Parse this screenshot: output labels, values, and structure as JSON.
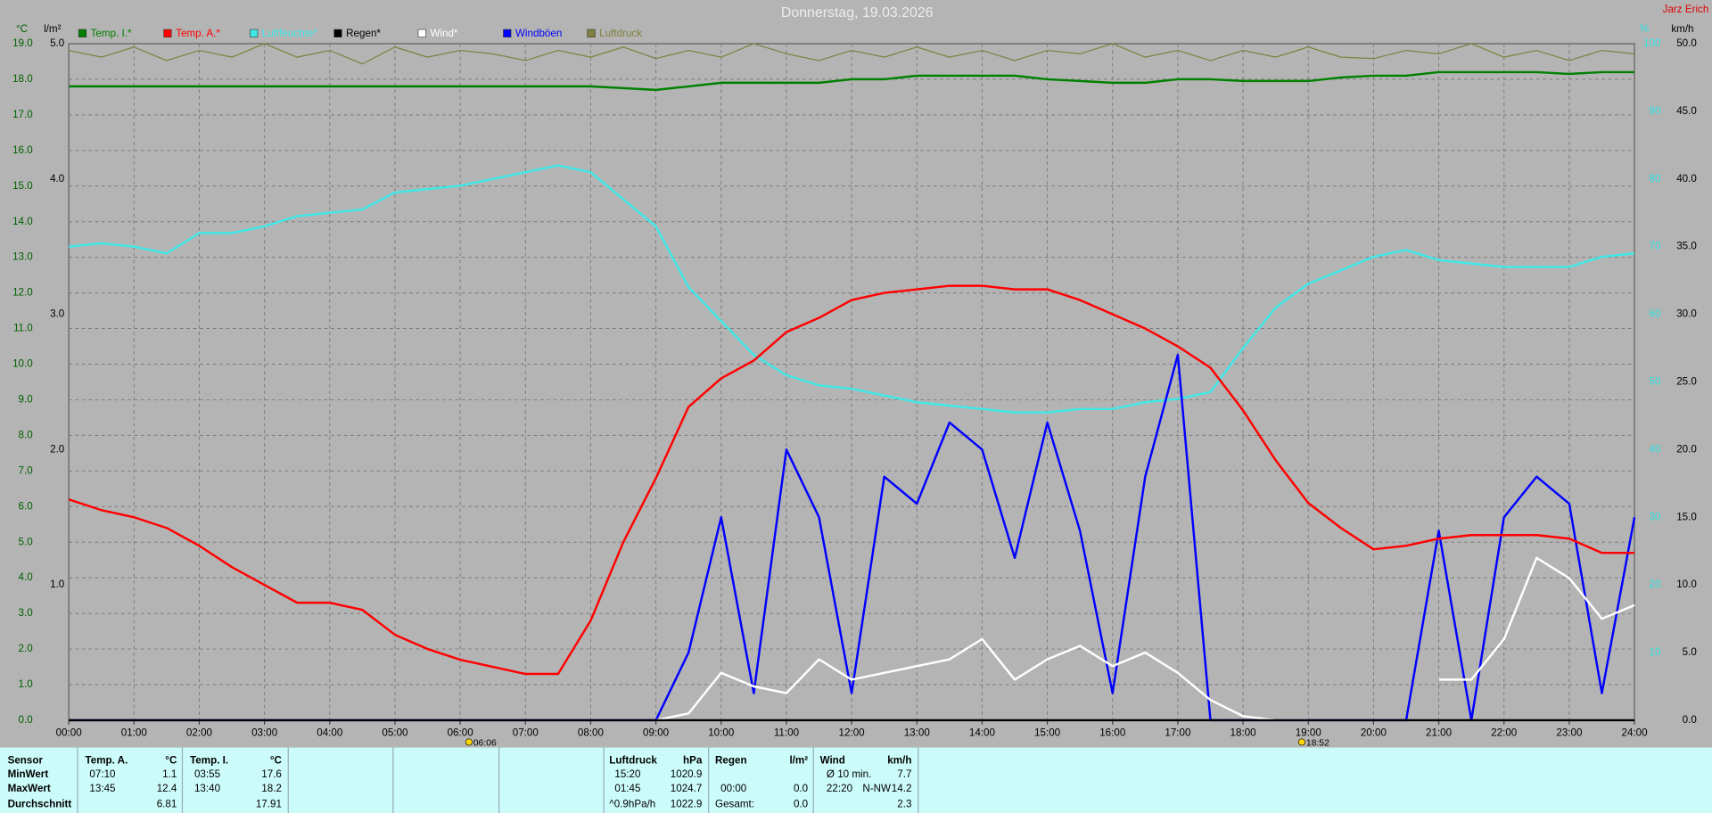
{
  "chart_data": {
    "type": "line",
    "title": "Donnerstag, 19.03.2026",
    "author": "Jarz Erich",
    "y_unit": "°C",
    "y2_unit": "%",
    "y3_unit": "km/h",
    "y4_unit": "l/m²",
    "xlim": [
      0,
      24
    ],
    "xticks": [
      {
        "value": 0,
        "label": "00:00"
      },
      {
        "value": 1,
        "label": "01:00"
      },
      {
        "value": 2,
        "label": "02:00"
      },
      {
        "value": 3,
        "label": "03:00"
      },
      {
        "value": 4,
        "label": "04:00"
      },
      {
        "value": 5,
        "label": "05:00"
      },
      {
        "value": 6,
        "label": "06:00"
      },
      {
        "value": 7,
        "label": "07:00"
      },
      {
        "value": 8,
        "label": "08:00"
      },
      {
        "value": 9,
        "label": "09:00"
      },
      {
        "value": 10,
        "label": "10:00"
      },
      {
        "value": 11,
        "label": "11:00"
      },
      {
        "value": 12,
        "label": "12:00"
      },
      {
        "value": 13,
        "label": "13:00"
      },
      {
        "value": 14,
        "label": "14:00"
      },
      {
        "value": 15,
        "label": "15:00"
      },
      {
        "value": 16,
        "label": "16:00"
      },
      {
        "value": 17,
        "label": "17:00"
      },
      {
        "value": 18,
        "label": "18:00"
      },
      {
        "value": 19,
        "label": "19:00"
      },
      {
        "value": 20,
        "label": "20:00"
      },
      {
        "value": 21,
        "label": "21:00"
      },
      {
        "value": 22,
        "label": "22:00"
      },
      {
        "value": 23,
        "label": "23:00"
      },
      {
        "value": 24,
        "label": "24:00"
      }
    ],
    "ylim": [
      0,
      19
    ],
    "yticks": [
      {
        "value": 0,
        "label": "0.0"
      },
      {
        "value": 1,
        "label": "1.0"
      },
      {
        "value": 2,
        "label": "2.0"
      },
      {
        "value": 3,
        "label": "3.0"
      },
      {
        "value": 4,
        "label": "4.0"
      },
      {
        "value": 5,
        "label": "5.0"
      },
      {
        "value": 6,
        "label": "6.0"
      },
      {
        "value": 7,
        "label": "7.0"
      },
      {
        "value": 8,
        "label": "8.0"
      },
      {
        "value": 9,
        "label": "9.0"
      },
      {
        "value": 10,
        "label": "10.0"
      },
      {
        "value": 11,
        "label": "11.0"
      },
      {
        "value": 12,
        "label": "12.0"
      },
      {
        "value": 13,
        "label": "13.0"
      },
      {
        "value": 14,
        "label": "14.0"
      },
      {
        "value": 15,
        "label": "15.0"
      },
      {
        "value": 16,
        "label": "16.0"
      },
      {
        "value": 17,
        "label": "17.0"
      },
      {
        "value": 18,
        "label": "18.0"
      },
      {
        "value": 19,
        "label": "19.0"
      }
    ],
    "y2lim": [
      0,
      100
    ],
    "y2ticks": [
      10,
      20,
      30,
      40,
      50,
      60,
      70,
      80,
      90,
      100
    ],
    "y3lim": [
      0,
      50
    ],
    "y3ticks": [
      {
        "value": 0,
        "label": "0.0"
      },
      {
        "value": 5,
        "label": "5.0"
      },
      {
        "value": 10,
        "label": "10.0"
      },
      {
        "value": 15,
        "label": "15.0"
      },
      {
        "value": 20,
        "label": "20.0"
      },
      {
        "value": 25,
        "label": "25.0"
      },
      {
        "value": 30,
        "label": "30.0"
      },
      {
        "value": 35,
        "label": "35.0"
      },
      {
        "value": 40,
        "label": "40.0"
      },
      {
        "value": 45,
        "label": "45.0"
      },
      {
        "value": 50,
        "label": "50.0"
      }
    ],
    "y4lim": [
      0,
      5
    ],
    "y4ticks": [
      {
        "value": 1,
        "label": "1.0"
      },
      {
        "value": 2,
        "label": "2.0"
      },
      {
        "value": 3,
        "label": "3.0"
      },
      {
        "value": 4,
        "label": "4.0"
      },
      {
        "value": 5,
        "label": "5.0"
      }
    ],
    "grid": true,
    "sunrise": {
      "x": 6.1,
      "label": "06:06"
    },
    "sunset": {
      "x": 18.8667,
      "label": "18:52"
    },
    "x": [
      0,
      0.5,
      1,
      1.5,
      2,
      2.5,
      3,
      3.5,
      4,
      4.5,
      5,
      5.5,
      6,
      6.5,
      7,
      7.5,
      8,
      8.5,
      9,
      9.5,
      10,
      10.5,
      11,
      11.5,
      12,
      12.5,
      13,
      13.5,
      14,
      14.5,
      15,
      15.5,
      16,
      16.5,
      17,
      17.5,
      18,
      18.5,
      19,
      19.5,
      20,
      20.5,
      21,
      21.5,
      22,
      22.5,
      23,
      23.5,
      24
    ],
    "series": [
      {
        "name": "Temp. I.*",
        "color": "#008000",
        "axis": "y",
        "values": [
          17.8,
          17.8,
          17.8,
          17.8,
          17.8,
          17.8,
          17.8,
          17.8,
          17.8,
          17.8,
          17.8,
          17.8,
          17.8,
          17.8,
          17.8,
          17.8,
          17.8,
          17.75,
          17.7,
          17.8,
          17.9,
          17.9,
          17.9,
          17.9,
          18.0,
          18.0,
          18.1,
          18.1,
          18.1,
          18.1,
          18.0,
          17.95,
          17.9,
          17.9,
          18.0,
          18.0,
          17.95,
          17.95,
          17.95,
          18.05,
          18.1,
          18.1,
          18.2,
          18.2,
          18.2,
          18.2,
          18.15,
          18.2,
          18.2
        ]
      },
      {
        "name": "Temp. A.*",
        "color": "#ff0000",
        "axis": "y",
        "values": [
          6.2,
          5.9,
          5.7,
          5.4,
          4.9,
          4.3,
          3.8,
          3.3,
          3.3,
          3.1,
          2.4,
          2.0,
          1.7,
          1.5,
          1.3,
          1.3,
          2.8,
          5.0,
          6.8,
          8.8,
          9.6,
          10.1,
          10.9,
          11.3,
          11.8,
          12.0,
          12.1,
          12.2,
          12.2,
          12.1,
          12.1,
          11.8,
          11.4,
          11.0,
          10.5,
          9.9,
          8.7,
          7.3,
          6.1,
          5.4,
          4.8,
          4.9,
          5.1,
          5.2,
          5.2,
          5.2,
          5.1,
          4.7,
          4.7
        ]
      },
      {
        "name": "Luftfeuchte*",
        "color": "#40e8e8",
        "axis": "y2",
        "values": [
          70,
          70.5,
          70,
          69,
          72,
          72,
          73,
          74.5,
          75,
          75.5,
          78,
          78.5,
          79,
          80,
          81,
          82,
          81,
          77,
          73,
          64,
          59,
          54,
          51,
          49.5,
          49,
          48,
          47,
          46.5,
          46,
          45.5,
          45.5,
          46,
          46,
          47,
          47.5,
          48.5,
          55,
          61,
          64.5,
          66.5,
          68.5,
          69.5,
          68,
          67.5,
          67,
          67,
          67,
          68.5,
          69
        ]
      },
      {
        "name": "Regen*",
        "color": "#000000",
        "axis": "y4",
        "values": [
          0,
          0,
          0,
          0,
          0,
          0,
          0,
          0,
          0,
          0,
          0,
          0,
          0,
          0,
          0,
          0,
          0,
          0,
          0,
          0,
          0,
          0,
          0,
          0,
          0,
          0,
          0,
          0,
          0,
          0,
          0,
          0,
          0,
          0,
          0,
          0,
          0,
          0,
          0,
          0,
          0,
          0,
          0,
          0,
          0,
          0,
          0,
          0,
          0
        ]
      },
      {
        "name": "Wind*",
        "color": "#ffffff",
        "axis": "y3",
        "values": [
          null,
          null,
          null,
          null,
          null,
          null,
          null,
          null,
          null,
          null,
          null,
          null,
          null,
          null,
          null,
          null,
          null,
          null,
          0,
          0.5,
          3.5,
          2.5,
          2,
          4.5,
          3,
          3.5,
          4,
          4.5,
          6,
          3,
          4.5,
          5.5,
          4,
          5,
          3.5,
          1.5,
          0.3,
          0,
          0,
          null,
          null,
          null,
          3,
          3,
          6,
          12,
          10.5,
          7.5,
          8.5
        ]
      },
      {
        "name": "Windböen",
        "color": "#0000ff",
        "axis": "y3",
        "values": [
          0,
          0,
          0,
          0,
          0,
          0,
          0,
          0,
          0,
          0,
          0,
          0,
          0,
          0,
          0,
          0,
          0,
          0,
          0,
          5,
          15,
          2,
          20,
          15,
          2,
          18,
          16,
          22,
          20,
          12,
          22,
          14,
          2,
          18,
          27,
          0,
          0,
          0,
          0,
          0,
          0,
          0,
          14,
          0,
          15,
          18,
          16,
          2,
          15
        ]
      },
      {
        "name": "Luftdruck",
        "color": "#808040",
        "axis": "y2",
        "values": [
          99,
          98,
          99.5,
          97.5,
          99,
          98,
          100,
          98,
          99,
          97,
          99.5,
          98,
          99,
          98.5,
          97.5,
          99,
          98,
          99.5,
          97.8,
          99,
          98,
          100,
          98.5,
          97.5,
          99,
          98,
          99.5,
          98,
          99,
          97.5,
          99,
          98.5,
          100,
          98,
          99,
          97.5,
          99,
          98,
          99.5,
          98,
          97.8,
          99,
          98.5,
          100,
          98,
          99,
          97.5,
          99,
          98.5
        ]
      }
    ]
  },
  "summary": {
    "row_labels": [
      "Sensor",
      "MinWert",
      "MaxWert",
      "Durchschnitt"
    ],
    "temp_a": {
      "name": "Temp. A.",
      "unit": "°C",
      "min_time": "07:10",
      "min": "1.1",
      "max_time": "13:45",
      "max": "12.4",
      "avg": "6.81"
    },
    "temp_i": {
      "name": "Temp. I.",
      "unit": "°C",
      "min_time": "03:55",
      "min": "17.6",
      "max_time": "13:40",
      "max": "18.2",
      "avg": "17.91"
    },
    "pressure": {
      "name": "Luftdruck",
      "unit": "hPa",
      "min_time": "15:20",
      "min": "1020.9",
      "max_time": "01:45",
      "max": "1024.7",
      "trend": "^0.9hPa/h",
      "avg": "1022.9"
    },
    "rain": {
      "name": "Regen",
      "unit": "l/m²",
      "max_time": "00:00",
      "max": "0.0",
      "total_label": "Gesamt:",
      "total": "0.0"
    },
    "wind": {
      "name": "Wind",
      "unit": "km/h",
      "min_label": "Ø 10 min.",
      "min": "7.7",
      "max_time": "22:20",
      "max_dir": "N-NW",
      "max": "14.2",
      "avg": "2.3"
    }
  }
}
